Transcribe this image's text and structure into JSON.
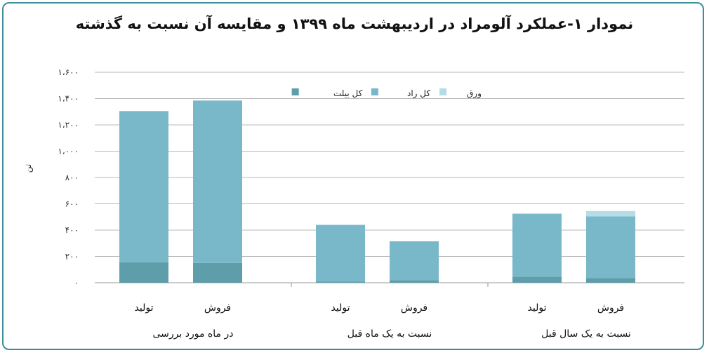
{
  "chart_data": {
    "type": "bar",
    "stacked": true,
    "title": "نمودار ۱-عملکرد آلومراد در اردیبهشت ماه ۱۳۹۹ و مقایسه آن نسبت به گذشته",
    "ylabel": "تن",
    "ylim": [
      0,
      1600
    ],
    "yticks": [
      0,
      200,
      400,
      600,
      800,
      1000,
      1200,
      1400,
      1600
    ],
    "ytick_labels": [
      "۰",
      "۲۰۰",
      "۴۰۰",
      "۶۰۰",
      "۸۰۰",
      "۱،۰۰۰",
      "۱،۲۰۰",
      "۱،۴۰۰",
      "۱،۶۰۰"
    ],
    "grid": true,
    "legend_position": "top-center",
    "groups": [
      {
        "label": "در ماه مورد بررسی",
        "categories": [
          "تولید",
          "فروش"
        ]
      },
      {
        "label": "نسبت به یک ماه قبل",
        "categories": [
          "تولید",
          "فروش"
        ]
      },
      {
        "label": "نسبت به یک سال قبل",
        "categories": [
          "تولید",
          "فروش"
        ]
      }
    ],
    "categories": [
      "تولید",
      "فروش",
      "تولید",
      "فروش",
      "تولید",
      "فروش"
    ],
    "series": [
      {
        "name": "کل بیلت",
        "color": "#5e9eab",
        "values": [
          155,
          150,
          10,
          20,
          45,
          35
        ]
      },
      {
        "name": "کل راد",
        "color": "#79b8c9",
        "values": [
          1150,
          1235,
          430,
          295,
          480,
          470
        ]
      },
      {
        "name": "ورق",
        "color": "#b5dce7",
        "values": [
          0,
          0,
          0,
          0,
          0,
          40
        ]
      }
    ]
  }
}
